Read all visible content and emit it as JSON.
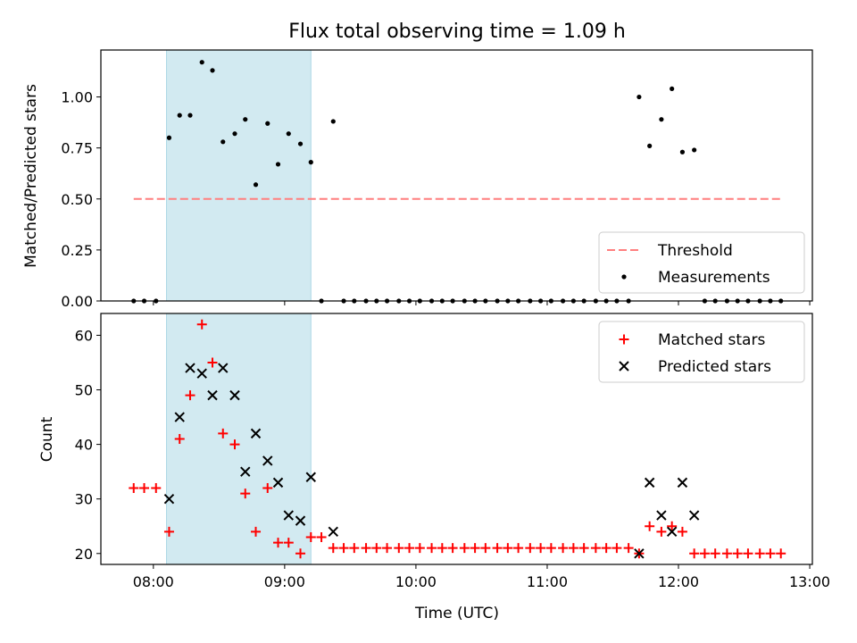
{
  "chart_data": [
    {
      "type": "scatter",
      "title": "Flux total observing time = 1.09 h",
      "xlabel": "",
      "ylabel": "Matched/Predicted stars",
      "xlim": [
        7.6,
        13.02
      ],
      "ylim": [
        0.0,
        1.23
      ],
      "yticks": [
        0.0,
        0.25,
        0.5,
        0.75,
        1.0
      ],
      "ytick_labels": [
        "0.00",
        "0.25",
        "0.50",
        "0.75",
        "1.00"
      ],
      "shaded_interval": [
        8.1,
        9.2
      ],
      "shaded_color": "#add8e6",
      "legend_position": "lower-right",
      "series": [
        {
          "name": "Threshold",
          "style": "dashed-line",
          "color": "#ff7f7f",
          "x": [
            7.85,
            12.78
          ],
          "y": [
            0.5,
            0.5
          ]
        },
        {
          "name": "Measurements",
          "style": "dot",
          "color": "#000000",
          "x": [
            7.85,
            7.93,
            8.02,
            8.12,
            8.2,
            8.28,
            8.37,
            8.45,
            8.53,
            8.62,
            8.7,
            8.78,
            8.87,
            8.95,
            9.03,
            9.12,
            9.2,
            9.28,
            9.37,
            9.45,
            9.53,
            9.62,
            9.7,
            9.78,
            9.87,
            9.95,
            10.03,
            10.12,
            10.2,
            10.28,
            10.37,
            10.45,
            10.53,
            10.62,
            10.7,
            10.78,
            10.87,
            10.95,
            11.03,
            11.12,
            11.2,
            11.28,
            11.37,
            11.45,
            11.53,
            11.62,
            11.7,
            11.78,
            11.87,
            11.95,
            12.03,
            12.12,
            12.2,
            12.28,
            12.37,
            12.45,
            12.53,
            12.62,
            12.7,
            12.78
          ],
          "y": [
            0,
            0,
            0,
            0.8,
            0.91,
            0.91,
            1.17,
            1.13,
            0.78,
            0.82,
            0.89,
            0.57,
            0.87,
            0.67,
            0.82,
            0.77,
            0.68,
            0,
            0.88,
            0,
            0,
            0,
            0,
            0,
            0,
            0,
            0,
            0,
            0,
            0,
            0,
            0,
            0,
            0,
            0,
            0,
            0,
            0,
            0,
            0,
            0,
            0,
            0,
            0,
            0,
            0,
            1.0,
            0.76,
            0.89,
            1.04,
            0.73,
            0.74,
            0,
            0,
            0,
            0,
            0,
            0,
            0,
            0
          ]
        }
      ]
    },
    {
      "type": "scatter",
      "title": "",
      "xlabel": "Time (UTC)",
      "ylabel": "Count",
      "xlim": [
        7.6,
        13.02
      ],
      "ylim": [
        18,
        64
      ],
      "yticks": [
        20,
        30,
        40,
        50,
        60
      ],
      "ytick_labels": [
        "20",
        "30",
        "40",
        "50",
        "60"
      ],
      "xticks": [
        8,
        9,
        10,
        11,
        12,
        13
      ],
      "xtick_labels": [
        "08:00",
        "09:00",
        "10:00",
        "11:00",
        "12:00",
        "13:00"
      ],
      "shaded_interval": [
        8.1,
        9.2
      ],
      "shaded_color": "#add8e6",
      "legend_position": "top-right",
      "series": [
        {
          "name": "Matched stars",
          "style": "plus",
          "color": "#ff0000",
          "x": [
            7.85,
            7.93,
            8.02,
            8.12,
            8.2,
            8.28,
            8.37,
            8.45,
            8.53,
            8.62,
            8.7,
            8.78,
            8.87,
            8.95,
            9.03,
            9.12,
            9.2,
            9.28,
            9.37,
            9.45,
            9.53,
            9.62,
            9.7,
            9.78,
            9.87,
            9.95,
            10.03,
            10.12,
            10.2,
            10.28,
            10.37,
            10.45,
            10.53,
            10.62,
            10.7,
            10.78,
            10.87,
            10.95,
            11.03,
            11.12,
            11.2,
            11.28,
            11.37,
            11.45,
            11.53,
            11.62,
            11.7,
            11.78,
            11.87,
            11.95,
            12.03,
            12.12,
            12.2,
            12.28,
            12.37,
            12.45,
            12.53,
            12.62,
            12.7,
            12.78
          ],
          "y": [
            32,
            32,
            32,
            24,
            41,
            49,
            62,
            55,
            42,
            40,
            31,
            24,
            32,
            22,
            22,
            20,
            23,
            23,
            21,
            21,
            21,
            21,
            21,
            21,
            21,
            21,
            21,
            21,
            21,
            21,
            21,
            21,
            21,
            21,
            21,
            21,
            21,
            21,
            21,
            21,
            21,
            21,
            21,
            21,
            21,
            21,
            20,
            25,
            24,
            25,
            24,
            20,
            20,
            20,
            20,
            20,
            20,
            20,
            20,
            20
          ]
        },
        {
          "name": "Predicted stars",
          "style": "x",
          "color": "#000000",
          "x": [
            8.12,
            8.2,
            8.28,
            8.37,
            8.45,
            8.53,
            8.62,
            8.7,
            8.78,
            8.87,
            8.95,
            9.03,
            9.12,
            9.2,
            9.37,
            11.7,
            11.78,
            11.87,
            11.95,
            12.03,
            12.12
          ],
          "y": [
            30,
            45,
            54,
            53,
            49,
            54,
            49,
            35,
            42,
            37,
            33,
            27,
            26,
            34,
            24,
            20,
            33,
            27,
            24,
            33,
            27
          ]
        }
      ]
    }
  ]
}
